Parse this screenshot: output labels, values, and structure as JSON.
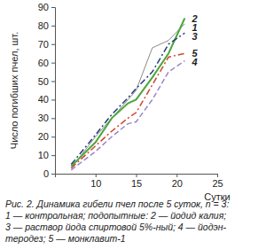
{
  "chart_data": {
    "type": "line",
    "x_label": "Сутки",
    "y_label": "Число погибших пчел, шт.",
    "caption": [
      "Рис. 2. Динамика гибели пчел после 5 суток, n = 3:",
      "1 — контрольная; подопытные: 2 — йодид калия;",
      "3 — раствор йода спиртовой 5%-ный; 4 — йодэн-",
      "теродез; 5 — монклавит-1"
    ],
    "x": [
      7,
      10,
      12,
      14,
      15,
      17,
      19,
      21
    ],
    "series": [
      {
        "name": "1",
        "color": "#8a8a8a",
        "line_style": "solid",
        "values": [
          3,
          20,
          30,
          40,
          45,
          68,
          72,
          81
        ]
      },
      {
        "name": "2",
        "color": "#4aa83c",
        "line_style": "solid",
        "values": [
          4,
          17,
          30,
          38,
          40,
          52,
          65,
          84
        ]
      },
      {
        "name": "3",
        "color": "#2b3a7a",
        "line_style": "dashdot",
        "values": [
          5,
          21,
          32,
          41,
          46,
          55,
          70,
          76
        ]
      },
      {
        "name": "4",
        "color": "#9a86c4",
        "line_style": "dashed",
        "values": [
          2,
          12,
          20,
          27,
          28,
          40,
          55,
          61
        ]
      },
      {
        "name": "5",
        "color": "#d2452e",
        "line_style": "dashdot",
        "values": [
          3,
          15,
          23,
          30,
          33,
          48,
          63,
          65
        ]
      }
    ],
    "xlim": [
      5,
      25
    ],
    "xticks": [
      10,
      15,
      20,
      25
    ],
    "ylim": [
      0,
      90
    ],
    "yticks": [
      0,
      10,
      20,
      30,
      40,
      50,
      60,
      70,
      80,
      90
    ],
    "grid": false,
    "legend": "right"
  }
}
